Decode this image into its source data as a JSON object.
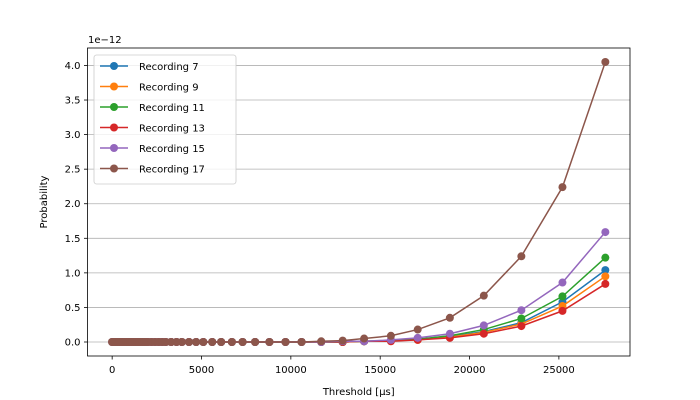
{
  "chart_data": {
    "type": "line",
    "title": "",
    "xlabel": "Threshold [µs]",
    "ylabel": "Probability",
    "offset_label": "1e−12",
    "xlim": [
      -1380,
      28980
    ],
    "ylim": [
      -0.2025,
      4.2525
    ],
    "xticks": [
      0,
      5000,
      10000,
      15000,
      20000,
      25000
    ],
    "xtick_labels": [
      "0",
      "5000",
      "10000",
      "15000",
      "20000",
      "25000"
    ],
    "yticks": [
      0.0,
      0.5,
      1.0,
      1.5,
      2.0,
      2.5,
      3.0,
      3.5,
      4.0
    ],
    "ytick_labels": [
      "0.0",
      "0.5",
      "1.0",
      "1.5",
      "2.0",
      "2.5",
      "3.0",
      "3.5",
      "4.0"
    ],
    "grid": "y",
    "legend_position": "upper-left",
    "x": [
      0,
      100,
      200,
      300,
      400,
      500,
      600,
      700,
      800,
      900,
      1000,
      1100,
      1200,
      1300,
      1400,
      1500,
      1600,
      1700,
      1800,
      1900,
      2000,
      2200,
      2400,
      2600,
      2800,
      3000,
      3300,
      3600,
      3900,
      4300,
      4700,
      5100,
      5600,
      6100,
      6700,
      7300,
      8000,
      8800,
      9700,
      10600,
      11700,
      12900,
      14100,
      15600,
      17100,
      18900,
      20800,
      22900,
      25200,
      27600
    ],
    "series": [
      {
        "name": "Recording 7",
        "color": "#1f77b4",
        "values": [
          0,
          0,
          0,
          0,
          0,
          0,
          0,
          0,
          0,
          0,
          0,
          0,
          0,
          0,
          0,
          0,
          0,
          0,
          0,
          0,
          0,
          0,
          0,
          0,
          0,
          0,
          0,
          0,
          0,
          0,
          0,
          0,
          0,
          0,
          0,
          0,
          0,
          0,
          0,
          0,
          0,
          0,
          0.01,
          0.02,
          0.04,
          0.08,
          0.15,
          0.28,
          0.58,
          1.04
        ]
      },
      {
        "name": "Recording 9",
        "color": "#ff7f0e",
        "values": [
          0,
          0,
          0,
          0,
          0,
          0,
          0,
          0,
          0,
          0,
          0,
          0,
          0,
          0,
          0,
          0,
          0,
          0,
          0,
          0,
          0,
          0,
          0,
          0,
          0,
          0,
          0,
          0,
          0,
          0,
          0,
          0,
          0,
          0,
          0,
          0,
          0,
          0,
          0,
          0,
          0,
          0,
          0.01,
          0.02,
          0.03,
          0.07,
          0.14,
          0.26,
          0.52,
          0.95
        ]
      },
      {
        "name": "Recording 11",
        "color": "#2ca02c",
        "values": [
          0,
          0,
          0,
          0,
          0,
          0,
          0,
          0,
          0,
          0,
          0,
          0,
          0,
          0,
          0,
          0,
          0,
          0,
          0,
          0,
          0,
          0,
          0,
          0,
          0,
          0,
          0,
          0,
          0,
          0,
          0,
          0,
          0,
          0,
          0,
          0,
          0,
          0,
          0,
          0,
          0,
          0,
          0.01,
          0.02,
          0.04,
          0.09,
          0.18,
          0.34,
          0.66,
          1.22
        ]
      },
      {
        "name": "Recording 13",
        "color": "#d62728",
        "values": [
          0,
          0,
          0,
          0,
          0,
          0,
          0,
          0,
          0,
          0,
          0,
          0,
          0,
          0,
          0,
          0,
          0,
          0,
          0,
          0,
          0,
          0,
          0,
          0,
          0,
          0,
          0,
          0,
          0,
          0,
          0,
          0,
          0,
          0,
          0,
          0,
          0,
          0,
          0,
          0,
          0,
          0,
          0.01,
          0.01,
          0.03,
          0.06,
          0.12,
          0.23,
          0.45,
          0.84
        ]
      },
      {
        "name": "Recording 15",
        "color": "#9467bd",
        "values": [
          0,
          0,
          0,
          0,
          0,
          0,
          0,
          0,
          0,
          0,
          0,
          0,
          0,
          0,
          0,
          0,
          0,
          0,
          0,
          0,
          0,
          0,
          0,
          0,
          0,
          0,
          0,
          0,
          0,
          0,
          0,
          0,
          0,
          0,
          0,
          0,
          0,
          0,
          0,
          0,
          0,
          0.01,
          0.01,
          0.03,
          0.06,
          0.12,
          0.24,
          0.46,
          0.86,
          1.59
        ]
      },
      {
        "name": "Recording 17",
        "color": "#8c564b",
        "values": [
          0,
          0,
          0,
          0,
          0,
          0,
          0,
          0,
          0,
          0,
          0,
          0,
          0,
          0,
          0,
          0,
          0,
          0,
          0,
          0,
          0,
          0,
          0,
          0,
          0,
          0,
          0,
          0,
          0,
          0,
          0,
          0,
          0,
          0,
          0,
          0,
          0,
          0,
          0,
          0,
          0.01,
          0.02,
          0.05,
          0.09,
          0.18,
          0.35,
          0.67,
          1.24,
          2.24,
          4.05
        ]
      }
    ]
  }
}
